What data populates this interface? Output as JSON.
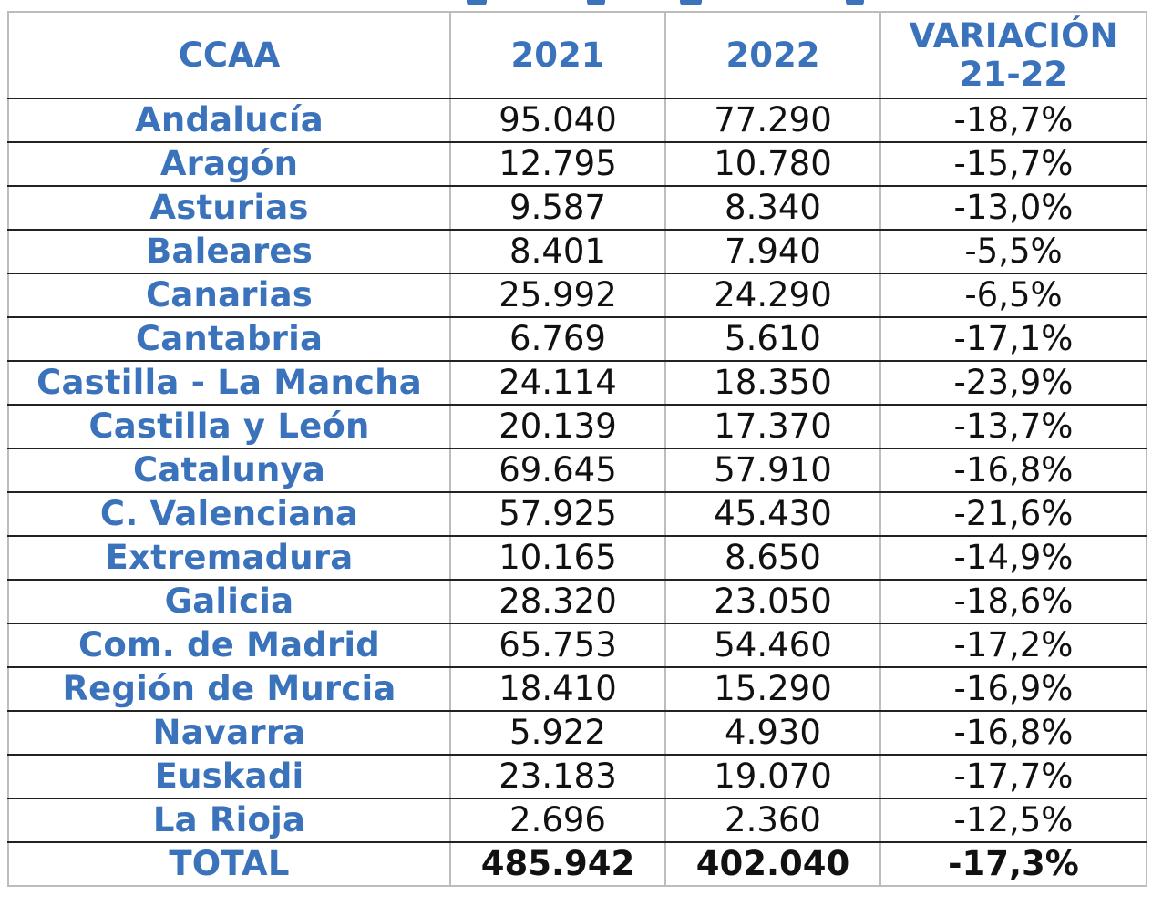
{
  "table": {
    "headers": {
      "ccaa": "CCAA",
      "y2021": "2021",
      "y2022": "2022",
      "variation_line1": "VARIACIÓN",
      "variation_line2": "21-22"
    },
    "rows": [
      {
        "ccaa": "Andalucía",
        "y2021": "95.040",
        "y2022": "77.290",
        "variation": "-18,7%"
      },
      {
        "ccaa": "Aragón",
        "y2021": "12.795",
        "y2022": "10.780",
        "variation": "-15,7%"
      },
      {
        "ccaa": "Asturias",
        "y2021": "9.587",
        "y2022": "8.340",
        "variation": "-13,0%"
      },
      {
        "ccaa": "Baleares",
        "y2021": "8.401",
        "y2022": "7.940",
        "variation": "-5,5%"
      },
      {
        "ccaa": "Canarias",
        "y2021": "25.992",
        "y2022": "24.290",
        "variation": "-6,5%"
      },
      {
        "ccaa": "Cantabria",
        "y2021": "6.769",
        "y2022": "5.610",
        "variation": "-17,1%"
      },
      {
        "ccaa": "Castilla - La Mancha",
        "y2021": "24.114",
        "y2022": "18.350",
        "variation": "-23,9%"
      },
      {
        "ccaa": "Castilla y León",
        "y2021": "20.139",
        "y2022": "17.370",
        "variation": "-13,7%"
      },
      {
        "ccaa": "Catalunya",
        "y2021": "69.645",
        "y2022": "57.910",
        "variation": "-16,8%"
      },
      {
        "ccaa": "C. Valenciana",
        "y2021": "57.925",
        "y2022": "45.430",
        "variation": "-21,6%"
      },
      {
        "ccaa": "Extremadura",
        "y2021": "10.165",
        "y2022": "8.650",
        "variation": "-14,9%"
      },
      {
        "ccaa": "Galicia",
        "y2021": "28.320",
        "y2022": "23.050",
        "variation": "-18,6%"
      },
      {
        "ccaa": "Com. de Madrid",
        "y2021": "65.753",
        "y2022": "54.460",
        "variation": "-17,2%"
      },
      {
        "ccaa": "Región de Murcia",
        "y2021": "18.410",
        "y2022": "15.290",
        "variation": "-16,9%"
      },
      {
        "ccaa": "Navarra",
        "y2021": "5.922",
        "y2022": "4.930",
        "variation": "-16,8%"
      },
      {
        "ccaa": "Euskadi",
        "y2021": "23.183",
        "y2022": "19.070",
        "variation": "-17,7%"
      },
      {
        "ccaa": "La Rioja",
        "y2021": "2.696",
        "y2022": "2.360",
        "variation": "-12,5%"
      }
    ],
    "total": {
      "ccaa": "TOTAL",
      "y2021": "485.942",
      "y2022": "402.040",
      "variation": "-17,3%"
    }
  },
  "colors": {
    "region_text": "#3a72bb",
    "value_text": "#111111",
    "row_border": "#222222",
    "column_border": "#bdbdbd"
  }
}
